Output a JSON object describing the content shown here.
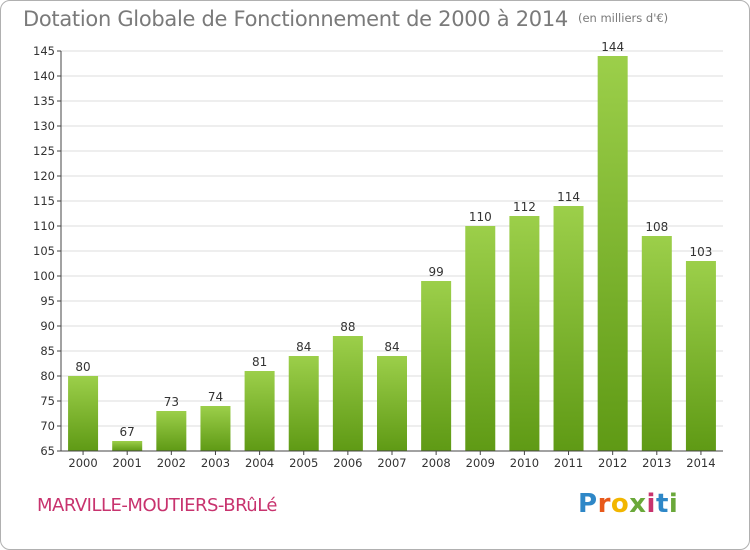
{
  "header": {
    "title": "Dotation Globale de Fonctionnement de 2000 à 2014",
    "unit": "(en milliers d'€)"
  },
  "footer": {
    "commune": "MARVILLE-MOUTIERS-BRûLé",
    "logo_letters": [
      "P",
      "r",
      "o",
      "x",
      "i",
      "t",
      "i"
    ],
    "logo_colors": [
      "#2e87c7",
      "#e8591b",
      "#f2b600",
      "#6aa83a",
      "#c8336e",
      "#2e87c7",
      "#6aa83a"
    ]
  },
  "colors": {
    "bar_light": "#9ccf4a",
    "bar_dark": "#5f9a15",
    "grid": "#dcdcdc",
    "axis": "#444444",
    "label": "#333333"
  },
  "chart_data": {
    "type": "bar",
    "categories": [
      "2000",
      "2001",
      "2002",
      "2003",
      "2004",
      "2005",
      "2006",
      "2007",
      "2008",
      "2009",
      "2010",
      "2011",
      "2012",
      "2013",
      "2014"
    ],
    "values": [
      80,
      67,
      73,
      74,
      81,
      84,
      88,
      84,
      99,
      110,
      112,
      114,
      144,
      108,
      103
    ],
    "ylim": [
      65,
      145
    ],
    "yticks": [
      65,
      70,
      75,
      80,
      85,
      90,
      95,
      100,
      105,
      110,
      115,
      120,
      125,
      130,
      135,
      140,
      145
    ],
    "grid": true,
    "data_labels": true
  }
}
